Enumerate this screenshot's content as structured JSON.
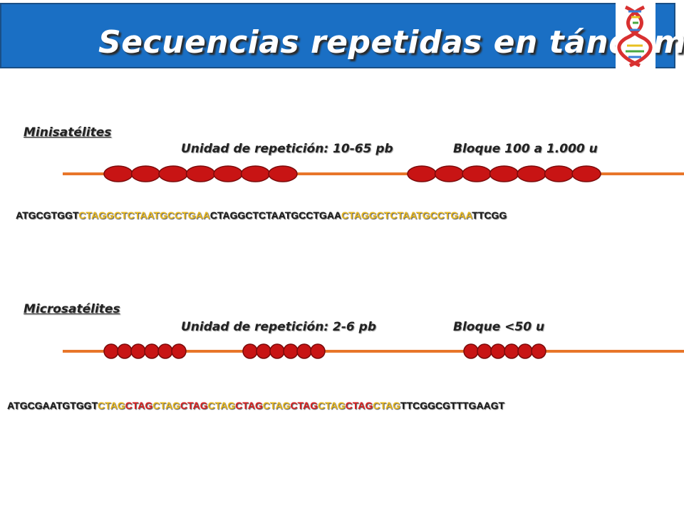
{
  "header": {
    "title": "Secuencias repetidas en tándem",
    "background": "#1a6fc4",
    "icon": "dna-helix-icon"
  },
  "minisatellites": {
    "label": "Minisatélites",
    "unit_label": "Unidad de repetición: 10-65 pb",
    "block_label": "Bloque 100 a 1.000 u",
    "blocks": [
      7,
      7
    ],
    "sequence": [
      {
        "text": "ATGCGTGGT",
        "color": "dark"
      },
      {
        "text": "CTAGGCTCTAATGCCTGAA",
        "color": "yellow"
      },
      {
        "text": "CTAGGCTCTAATGCCTGAA",
        "color": "dark"
      },
      {
        "text": "CTAGGCTCTAATGCCTGAA",
        "color": "yellow"
      },
      {
        "text": "TTCGG",
        "color": "dark"
      }
    ]
  },
  "microsatellites": {
    "label": "Microsatélites",
    "unit_label": "Unidad de repetición: 2-6 pb",
    "block_label": "Bloque <50 u",
    "blocks": [
      6,
      6,
      6
    ],
    "sequence": [
      {
        "text": "ATGCGAATGTGGT",
        "color": "dark"
      },
      {
        "text": "CTAG",
        "color": "yellow"
      },
      {
        "text": "CTAG",
        "color": "red"
      },
      {
        "text": "CTAG",
        "color": "yellow"
      },
      {
        "text": "CTAG",
        "color": "red"
      },
      {
        "text": "CTAG",
        "color": "yellow"
      },
      {
        "text": "CTAG",
        "color": "red"
      },
      {
        "text": "CTAG",
        "color": "yellow"
      },
      {
        "text": "CTAG",
        "color": "red"
      },
      {
        "text": "CTAG",
        "color": "yellow"
      },
      {
        "text": "CTAG",
        "color": "red"
      },
      {
        "text": "CTAG",
        "color": "yellow"
      },
      {
        "text": "TTCGGCGTTTGAAGT",
        "color": "dark"
      }
    ]
  },
  "colors": {
    "strand": "#e8762a",
    "repeat_fill": "#c81414",
    "repeat_stroke": "#7a0a0a",
    "dark": "#1a1a1a",
    "yellow": "#e8b820",
    "red": "#d82020"
  }
}
